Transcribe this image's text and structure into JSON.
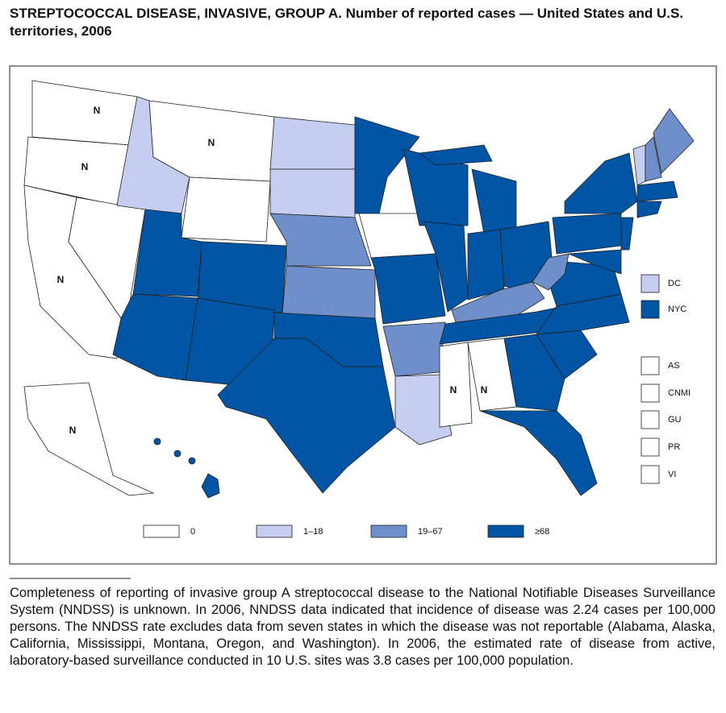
{
  "title": "STREPTOCOCCAL DISEASE, INVASIVE, GROUP A. Number of reported cases — United States and U.S. territories, 2006",
  "map": {
    "state_labels": [
      "N",
      "N",
      "N",
      "N",
      "N",
      "N",
      "N"
    ]
  },
  "legend": {
    "items": [
      {
        "label": "0",
        "color": "#ffffff"
      },
      {
        "label": "1–18",
        "color": "#c5cdf0"
      },
      {
        "label": "19–67",
        "color": "#6f8fcb"
      },
      {
        "label": "≥68",
        "color": "#0254a5"
      }
    ]
  },
  "territories": [
    {
      "label": "DC",
      "color": "#c5cdf0"
    },
    {
      "label": "NYC",
      "color": "#0254a5"
    },
    {
      "label": "AS",
      "color": "#ffffff"
    },
    {
      "label": "CNMI",
      "color": "#ffffff"
    },
    {
      "label": "GU",
      "color": "#ffffff"
    },
    {
      "label": "PR",
      "color": "#ffffff"
    },
    {
      "label": "VI",
      "color": "#ffffff"
    }
  ],
  "footnote": "Completeness of reporting of invasive group A streptococcal disease to the National Notifiable Diseases Surveillance System (NNDSS) is unknown. In 2006, NNDSS data indicated that incidence of disease was 2.24 cases per 100,000 persons. The NNDSS rate excludes data from seven states in which the disease was not reportable (Alabama, Alaska, California, Mississippi, Montana, Oregon, and Washington). In 2006, the estimated rate of disease from active, laboratory-based surveillance conducted in 10 U.S. sites was 3.8 cases per 100,000 population."
}
